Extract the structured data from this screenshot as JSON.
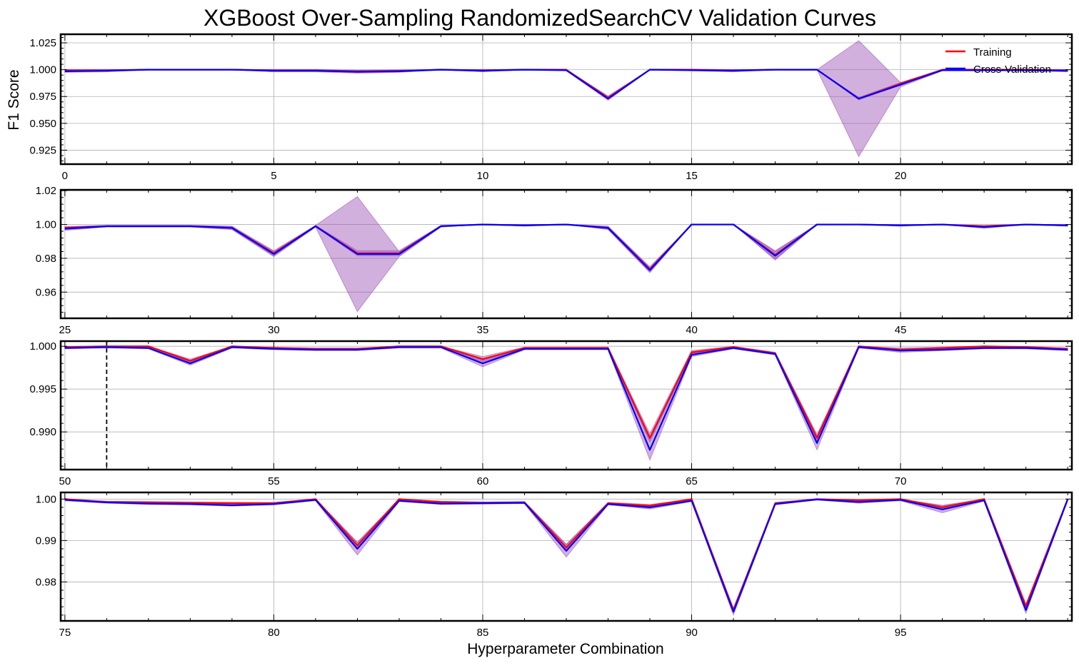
{
  "chart_data": {
    "type": "line",
    "title": "XGBoost Over-Sampling RandomizedSearchCV Validation Curves",
    "xlabel": "Hyperparameter Combination",
    "ylabel": "F1 Score",
    "legend": {
      "placement": "top-right",
      "entries": [
        "Training",
        "Cross-Validation"
      ]
    },
    "grid": true,
    "colors": {
      "training": "#ff0000",
      "cross_validation": "#0000ff",
      "band": "#9b4fb5",
      "marker": "#000000"
    },
    "best_marker_x": 51,
    "panels": [
      {
        "xlim": [
          -0.1,
          24.1
        ],
        "ylim": [
          0.912,
          1.033
        ],
        "xticks": [
          {
            "v": 0,
            "label": "0"
          },
          {
            "v": 5,
            "label": "5"
          },
          {
            "v": 10,
            "label": "10"
          },
          {
            "v": 15,
            "label": "15"
          },
          {
            "v": 20,
            "label": "20"
          }
        ],
        "yticks": [
          {
            "v": 0.925,
            "label": "0.925"
          },
          {
            "v": 0.95,
            "label": "0.950"
          },
          {
            "v": 0.975,
            "label": "0.975"
          },
          {
            "v": 1.0,
            "label": "1.000"
          },
          {
            "v": 1.025,
            "label": "1.025"
          }
        ],
        "x": [
          0,
          1,
          2,
          3,
          4,
          5,
          6,
          7,
          8,
          9,
          10,
          11,
          12,
          13,
          14,
          15,
          16,
          17,
          18,
          19,
          20,
          21,
          22,
          23,
          24
        ],
        "training": [
          0.9995,
          0.9995,
          1.0,
          1.0,
          1.0,
          0.9995,
          0.9995,
          0.9985,
          0.999,
          1.0,
          0.9995,
          1.0,
          1.0,
          0.974,
          1.0,
          1.0,
          0.9995,
          1.0,
          1.0,
          0.973,
          0.987,
          1.0,
          1.0,
          1.0,
          0.9995
        ],
        "training_std": [
          0.0005,
          0.0005,
          0,
          0,
          0,
          0.0005,
          0.0005,
          0.001,
          0.0008,
          0,
          0.0005,
          0,
          0,
          0.0015,
          0,
          0,
          0.0005,
          0,
          0,
          0.0012,
          0.001,
          0,
          0,
          0,
          0.0005
        ],
        "cv": [
          0.9985,
          0.999,
          1.0,
          1.0,
          1.0,
          0.999,
          0.999,
          0.998,
          0.9985,
          1.0,
          0.999,
          1.0,
          0.9995,
          0.973,
          1.0,
          0.9995,
          0.999,
          1.0,
          1.0,
          0.973,
          0.986,
          0.9995,
          0.9995,
          0.9995,
          0.999
        ],
        "cv_std": [
          0.001,
          0.001,
          0,
          0,
          0,
          0.001,
          0.001,
          0.0012,
          0.001,
          0,
          0.001,
          0,
          0.0005,
          0.0015,
          0,
          0.0005,
          0.001,
          0,
          0,
          0.054,
          0.002,
          0.0005,
          0.0005,
          0.0005,
          0.001
        ]
      },
      {
        "xlim": [
          24.9,
          49.1
        ],
        "ylim": [
          0.9445,
          1.0205
        ],
        "xticks": [
          {
            "v": 25,
            "label": "25"
          },
          {
            "v": 30,
            "label": "30"
          },
          {
            "v": 35,
            "label": "35"
          },
          {
            "v": 40,
            "label": "40"
          },
          {
            "v": 45,
            "label": "45"
          }
        ],
        "yticks": [
          {
            "v": 0.96,
            "label": "0.96"
          },
          {
            "v": 0.98,
            "label": "0.98"
          },
          {
            "v": 1.0,
            "label": "1.00"
          },
          {
            "v": 1.02,
            "label": "1.02"
          }
        ],
        "x": [
          25,
          26,
          27,
          28,
          29,
          30,
          31,
          32,
          33,
          34,
          35,
          36,
          37,
          38,
          39,
          40,
          41,
          42,
          43,
          44,
          45,
          46,
          47,
          48,
          49
        ],
        "training": [
          0.998,
          0.999,
          0.999,
          0.999,
          0.998,
          0.983,
          0.999,
          0.983,
          0.983,
          0.999,
          1.0,
          0.9995,
          1.0,
          0.998,
          0.9735,
          1.0,
          1.0,
          0.982,
          1.0,
          1.0,
          0.9995,
          1.0,
          0.999,
          1.0,
          0.9995
        ],
        "training_std": [
          0.0008,
          0.0004,
          0.0004,
          0.0004,
          0.0008,
          0.0015,
          0.0004,
          0.0015,
          0.0015,
          0.0004,
          0,
          0.0004,
          0,
          0.0008,
          0.0015,
          0,
          0,
          0.0025,
          0,
          0,
          0.0004,
          0,
          0.0004,
          0,
          0.0004
        ],
        "cv": [
          0.9975,
          0.999,
          0.999,
          0.999,
          0.998,
          0.9825,
          0.999,
          0.9825,
          0.9825,
          0.999,
          1.0,
          0.9995,
          1.0,
          0.998,
          0.973,
          1.0,
          1.0,
          0.9815,
          1.0,
          1.0,
          0.9995,
          1.0,
          0.9985,
          1.0,
          0.9995
        ],
        "cv_std": [
          0.001,
          0.0005,
          0.0005,
          0.0005,
          0.001,
          0.0015,
          0.0005,
          0.034,
          0.0015,
          0.0005,
          0,
          0.0005,
          0,
          0.001,
          0.0015,
          0,
          0,
          0.0025,
          0,
          0,
          0.0005,
          0,
          0.0008,
          0,
          0.0005
        ]
      },
      {
        "xlim": [
          49.9,
          74.1
        ],
        "ylim": [
          0.9856,
          1.0006
        ],
        "xticks": [
          {
            "v": 50,
            "label": "50"
          },
          {
            "v": 55,
            "label": "55"
          },
          {
            "v": 60,
            "label": "60"
          },
          {
            "v": 65,
            "label": "65"
          },
          {
            "v": 70,
            "label": "70"
          }
        ],
        "yticks": [
          {
            "v": 0.99,
            "label": "0.990"
          },
          {
            "v": 0.995,
            "label": "0.995"
          },
          {
            "v": 1.0,
            "label": "1.000"
          }
        ],
        "x": [
          50,
          51,
          52,
          53,
          54,
          55,
          56,
          57,
          58,
          59,
          60,
          61,
          62,
          63,
          64,
          65,
          66,
          67,
          68,
          69,
          70,
          71,
          72,
          73,
          74
        ],
        "training": [
          0.9999,
          1.0,
          1.0,
          0.9983,
          1.0,
          0.9998,
          0.9997,
          0.9997,
          1.0,
          1.0,
          0.9985,
          0.9998,
          0.9998,
          0.9998,
          0.9893,
          0.9993,
          0.9999,
          0.9992,
          0.9893,
          1.0,
          0.9996,
          0.9998,
          1.0,
          0.9999,
          0.9997
        ],
        "training_std": [
          0.0001,
          0,
          0,
          0.0002,
          0,
          0.0001,
          0.0001,
          0.0001,
          0,
          0,
          0.0003,
          0.0001,
          0.0001,
          0.0001,
          0.0005,
          0.0002,
          0.0001,
          0.0001,
          0.0004,
          0,
          0.0002,
          0.0001,
          0,
          0.0001,
          0.0001
        ],
        "cv": [
          0.9998,
          0.9999,
          0.9998,
          0.998,
          0.9999,
          0.9997,
          0.9996,
          0.9996,
          0.9999,
          0.9999,
          0.998,
          0.9997,
          0.9997,
          0.9997,
          0.9879,
          0.999,
          0.9998,
          0.9991,
          0.9887,
          0.9999,
          0.9995,
          0.9996,
          0.9998,
          0.9998,
          0.9996
        ],
        "cv_std": [
          0.0001,
          0.0001,
          0.0001,
          0.0002,
          0.0001,
          0.0001,
          0.0001,
          0.0001,
          0.0001,
          0.0001,
          0.0004,
          0.0001,
          0.0001,
          0.0001,
          0.0012,
          0.0002,
          0.0001,
          0.0001,
          0.0008,
          0.0001,
          0.0002,
          0.0001,
          0.0001,
          0.0001,
          0.0001
        ]
      },
      {
        "xlim": [
          74.9,
          99.1
        ],
        "ylim": [
          0.9706,
          1.0016
        ],
        "xticks": [
          {
            "v": 75,
            "label": "75"
          },
          {
            "v": 80,
            "label": "80"
          },
          {
            "v": 85,
            "label": "85"
          },
          {
            "v": 90,
            "label": "90"
          },
          {
            "v": 95,
            "label": "95"
          }
        ],
        "yticks": [
          {
            "v": 0.98,
            "label": "0.98"
          },
          {
            "v": 0.99,
            "label": "0.99"
          },
          {
            "v": 1.0,
            "label": "1.00"
          }
        ],
        "x": [
          75,
          76,
          77,
          78,
          79,
          80,
          81,
          82,
          83,
          84,
          85,
          86,
          87,
          88,
          89,
          90,
          91,
          92,
          93,
          94,
          95,
          96,
          97,
          98,
          99
        ],
        "training": [
          1.0,
          0.9993,
          0.9992,
          0.9991,
          0.999,
          0.999,
          1.0,
          0.9888,
          1.0,
          0.9993,
          0.9991,
          0.9992,
          0.9883,
          0.999,
          0.9984,
          1.0,
          0.9732,
          0.999,
          1.0,
          0.9997,
          1.0,
          0.998,
          1.0,
          0.9742,
          1.0
        ],
        "training_std": [
          0,
          0.0002,
          0.0002,
          0.0002,
          0.0002,
          0.0002,
          0,
          0.0008,
          0,
          0.0002,
          0.0002,
          0.0002,
          0.0008,
          0.0002,
          0.0003,
          0,
          0.0005,
          0.0002,
          0,
          0.0002,
          0,
          0.0005,
          0,
          0.0005,
          0
        ],
        "cv": [
          0.9998,
          0.9992,
          0.9989,
          0.9988,
          0.9985,
          0.9988,
          0.9998,
          0.988,
          0.9996,
          0.9989,
          0.999,
          0.9991,
          0.9875,
          0.9988,
          0.998,
          0.9996,
          0.9728,
          0.9988,
          0.9999,
          0.9993,
          0.9998,
          0.9975,
          0.9997,
          0.9732,
          0.9999
        ],
        "cv_std": [
          0.0002,
          0.0002,
          0.0002,
          0.0002,
          0.0002,
          0.0002,
          0.0002,
          0.0015,
          0.0002,
          0.0002,
          0.0002,
          0.0002,
          0.0015,
          0.0002,
          0.0004,
          0.0002,
          0.0008,
          0.0002,
          0.0001,
          0.0003,
          0.0002,
          0.0008,
          0.0002,
          0.0008,
          0.0001
        ]
      }
    ]
  }
}
